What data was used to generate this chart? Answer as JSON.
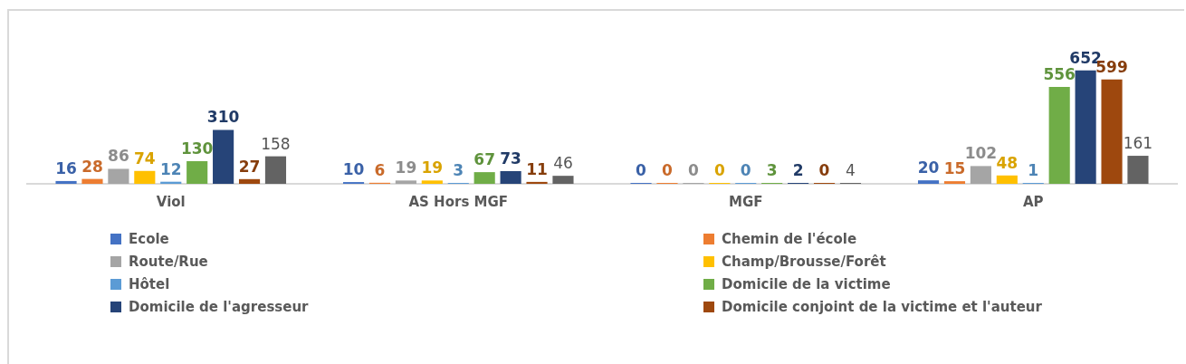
{
  "chart_data": {
    "type": "bar",
    "categories": [
      "Viol",
      "AS Hors MGF",
      "MGF",
      "AP"
    ],
    "data_labels": true,
    "legend": "bottom",
    "grid": false,
    "series": [
      {
        "name": "Ecole",
        "color": "#4472c4",
        "values": [
          16,
          10,
          0,
          20
        ]
      },
      {
        "name": "Chemin de l'école",
        "color": "#ed7d31",
        "values": [
          28,
          6,
          0,
          15
        ]
      },
      {
        "name": "Route/Rue",
        "color": "#a5a5a5",
        "values": [
          86,
          19,
          0,
          102
        ]
      },
      {
        "name": "Champ/Brousse/Forêt",
        "color": "#ffc000",
        "values": [
          74,
          19,
          0,
          48
        ]
      },
      {
        "name": "Hôtel",
        "color": "#5b9bd5",
        "values": [
          12,
          3,
          0,
          1
        ]
      },
      {
        "name": "Domicile de la victime",
        "color": "#70ad47",
        "values": [
          130,
          67,
          3,
          556
        ]
      },
      {
        "name": "Domicile de l'agresseur",
        "color": "#264478",
        "values": [
          310,
          73,
          2,
          652
        ]
      },
      {
        "name": "Domicile conjoint de la victime et l'auteur",
        "color": "#9e480e",
        "values": [
          27,
          11,
          0,
          599
        ]
      },
      {
        "color": "#636363",
        "values": [
          158,
          46,
          4,
          161
        ]
      }
    ]
  }
}
